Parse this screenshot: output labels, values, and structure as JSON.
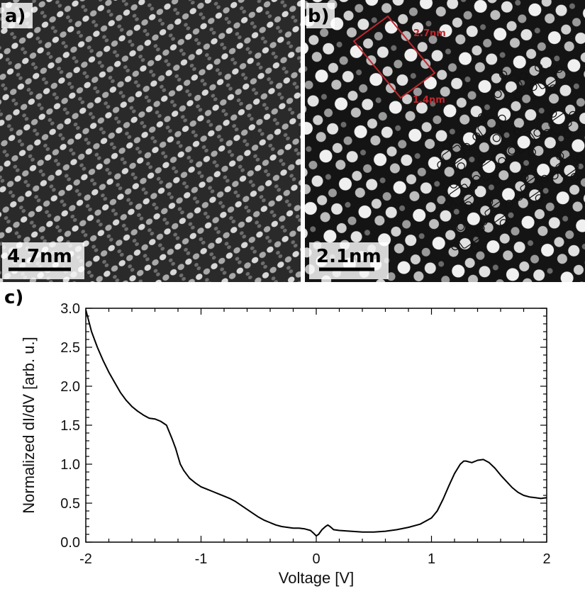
{
  "panels": {
    "a": {
      "label": "a)",
      "scale_bar": "4.7nm"
    },
    "b": {
      "label": "b)",
      "scale_bar": "2.1nm",
      "unit_cell": {
        "long_side": "2.7nm",
        "short_side": "1.4nm"
      }
    },
    "c": {
      "label": "c)"
    }
  },
  "colors": {
    "unit_cell": "#c0272d",
    "curve": "#000000",
    "stm_dark": "#1c1c1c",
    "stm_bright": "#e6e6e6"
  },
  "chart_data": {
    "type": "line",
    "title": "",
    "xlabel": "Voltage [V]",
    "ylabel": "Normalized dI/dV [arb. u.]",
    "xlim": [
      -2,
      2
    ],
    "ylim": [
      0,
      3
    ],
    "xticks": [
      -2,
      -1,
      0,
      1,
      2
    ],
    "xtick_labels": [
      "-2",
      "-1",
      "0",
      "1",
      "2"
    ],
    "yticks": [
      0,
      0.5,
      1,
      1.5,
      2,
      2.5,
      3
    ],
    "ytick_labels": [
      "0.0",
      "0.5",
      "1.0",
      "1.5",
      "2.0",
      "2.5",
      "3.0"
    ],
    "grid": false,
    "series": [
      {
        "name": "dI/dV",
        "x": [
          -2.0,
          -1.95,
          -1.9,
          -1.85,
          -1.8,
          -1.75,
          -1.7,
          -1.65,
          -1.6,
          -1.55,
          -1.5,
          -1.45,
          -1.4,
          -1.35,
          -1.3,
          -1.25,
          -1.22,
          -1.2,
          -1.18,
          -1.15,
          -1.1,
          -1.05,
          -1.0,
          -0.95,
          -0.9,
          -0.85,
          -0.8,
          -0.75,
          -0.7,
          -0.65,
          -0.6,
          -0.55,
          -0.5,
          -0.45,
          -0.4,
          -0.35,
          -0.3,
          -0.25,
          -0.2,
          -0.15,
          -0.1,
          -0.05,
          -0.02,
          0.0,
          0.02,
          0.05,
          0.08,
          0.1,
          0.12,
          0.15,
          0.2,
          0.3,
          0.4,
          0.5,
          0.6,
          0.7,
          0.8,
          0.9,
          1.0,
          1.05,
          1.1,
          1.15,
          1.2,
          1.25,
          1.28,
          1.3,
          1.35,
          1.4,
          1.45,
          1.5,
          1.55,
          1.6,
          1.65,
          1.7,
          1.75,
          1.8,
          1.85,
          1.9,
          1.95,
          2.0
        ],
        "y": [
          2.98,
          2.7,
          2.5,
          2.33,
          2.18,
          2.05,
          1.92,
          1.82,
          1.74,
          1.68,
          1.63,
          1.59,
          1.58,
          1.55,
          1.5,
          1.32,
          1.2,
          1.1,
          1.0,
          0.92,
          0.82,
          0.76,
          0.71,
          0.68,
          0.65,
          0.62,
          0.59,
          0.56,
          0.52,
          0.47,
          0.42,
          0.37,
          0.32,
          0.28,
          0.25,
          0.22,
          0.2,
          0.19,
          0.18,
          0.18,
          0.17,
          0.15,
          0.11,
          0.08,
          0.1,
          0.16,
          0.2,
          0.22,
          0.2,
          0.16,
          0.15,
          0.14,
          0.13,
          0.13,
          0.14,
          0.16,
          0.19,
          0.23,
          0.31,
          0.4,
          0.55,
          0.72,
          0.88,
          1.0,
          1.04,
          1.04,
          1.02,
          1.05,
          1.06,
          1.02,
          0.95,
          0.86,
          0.78,
          0.7,
          0.64,
          0.6,
          0.58,
          0.57,
          0.56,
          0.57
        ]
      }
    ]
  }
}
